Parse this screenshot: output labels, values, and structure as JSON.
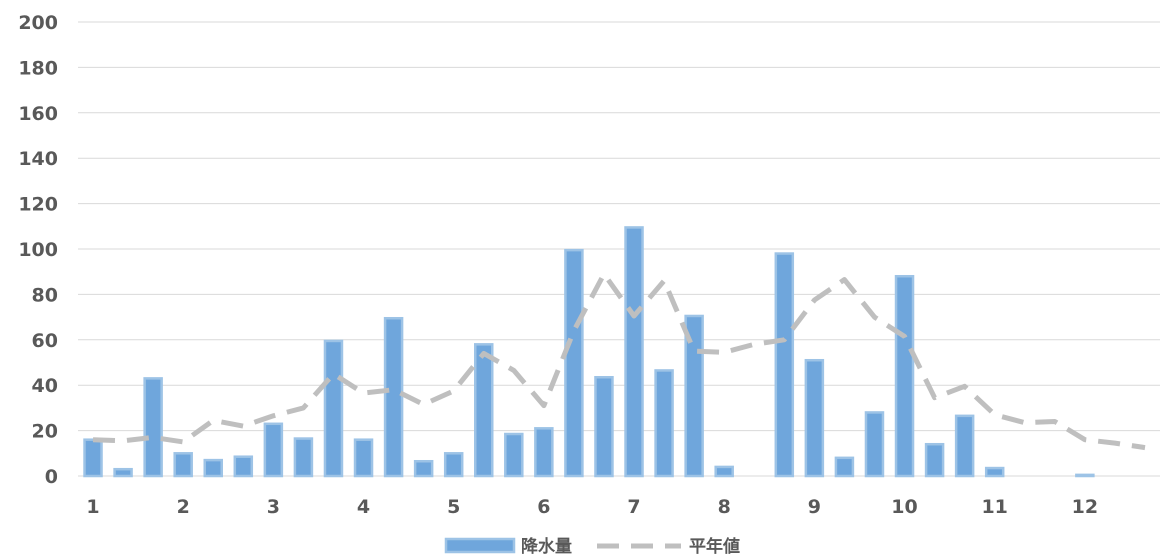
{
  "chart_data": {
    "type": "bar",
    "colors": {
      "bar_fill": "#6FA6DC",
      "bar_edge": "#9DC3E6",
      "line": "#BFBFBF",
      "grid": "#D9D9D9",
      "text": "#595959"
    },
    "y_ticks": [
      "0",
      "20",
      "40",
      "60",
      "80",
      "100",
      "120",
      "140",
      "160",
      "180",
      "200"
    ],
    "x_ticks": [
      "1",
      "2",
      "3",
      "4",
      "5",
      "6",
      "7",
      "8",
      "9",
      "10",
      "11",
      "12"
    ],
    "ylim": [
      0,
      200
    ],
    "grid": true,
    "legend_position": "bottom",
    "series": [
      {
        "name": "降水量",
        "type": "bar",
        "values": [
          16,
          3,
          43,
          10,
          7,
          8.5,
          23,
          16.5,
          59.5,
          16,
          69.5,
          6.5,
          10,
          58,
          18.5,
          21,
          99.5,
          43.5,
          109.5,
          46.5,
          70.5,
          4,
          0,
          98,
          51,
          8,
          28,
          88,
          14,
          26.5,
          3.5,
          0,
          0,
          0.5,
          0,
          0
        ]
      },
      {
        "name": "平年値",
        "type": "line",
        "values": [
          16,
          15.5,
          17,
          15,
          24.5,
          22,
          26.5,
          30,
          45,
          36.5,
          38,
          31.5,
          37.5,
          54,
          46.5,
          31,
          64,
          89,
          70.5,
          86,
          55,
          54.5,
          58,
          60,
          77.5,
          86.5,
          70,
          61.5,
          34.5,
          39.5,
          27,
          23.5,
          24,
          16,
          14.5,
          12.5
        ]
      }
    ]
  }
}
